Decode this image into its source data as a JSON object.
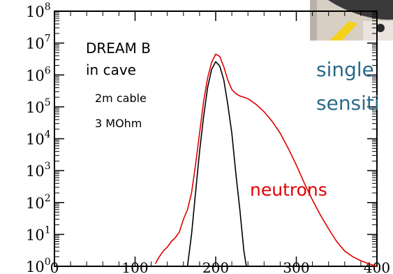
{
  "chart_data": {
    "type": "line",
    "title": "",
    "xlabel": "",
    "ylabel": "",
    "xlim": [
      0,
      400
    ],
    "ylim": [
      1,
      100000000
    ],
    "y_scale": "log",
    "grid": false,
    "x_ticks": [
      {
        "value": 0,
        "label": "0"
      },
      {
        "value": 100,
        "label": "100"
      },
      {
        "value": 200,
        "label": "200"
      },
      {
        "value": 300,
        "label": "300"
      },
      {
        "value": 400,
        "label": "400"
      }
    ],
    "y_ticks": [
      {
        "exp": 0,
        "base": "10",
        "sup": "0"
      },
      {
        "exp": 1,
        "base": "10",
        "sup": "1"
      },
      {
        "exp": 2,
        "base": "10",
        "sup": "2"
      },
      {
        "exp": 3,
        "base": "10",
        "sup": "3"
      },
      {
        "exp": 4,
        "base": "10",
        "sup": "4"
      },
      {
        "exp": 5,
        "base": "10",
        "sup": "5"
      },
      {
        "exp": 6,
        "base": "10",
        "sup": "6"
      },
      {
        "exp": 7,
        "base": "10",
        "sup": "7"
      },
      {
        "exp": 8,
        "base": "10",
        "sup": "8"
      }
    ],
    "series": [
      {
        "color": "#e00000",
        "x": [
          125,
          130,
          135,
          140,
          145,
          150,
          155,
          160,
          165,
          170,
          175,
          180,
          185,
          190,
          195,
          200,
          205,
          210,
          215,
          220,
          225,
          230,
          235,
          240,
          250,
          260,
          270,
          280,
          290,
          300,
          310,
          320,
          330,
          340,
          350,
          360,
          370,
          380,
          390,
          400
        ],
        "y": [
          1.2,
          2,
          3,
          4,
          6,
          8,
          12,
          30,
          60,
          200,
          1500,
          15000,
          150000,
          800000,
          2500000,
          4500000,
          3800000,
          1800000,
          700000,
          350000,
          260000,
          220000,
          200000,
          180000,
          120000,
          70000,
          35000,
          15000,
          5000,
          1500,
          400,
          120,
          40,
          15,
          6,
          3,
          2,
          1.5,
          1.2,
          1
        ]
      },
      {
        "color": "#000000",
        "x": [
          165,
          170,
          175,
          180,
          185,
          190,
          195,
          200,
          205,
          210,
          215,
          220,
          225,
          230,
          235,
          238
        ],
        "y": [
          1,
          10,
          200,
          4000,
          50000,
          400000,
          1500000,
          2600000,
          1900000,
          700000,
          120000,
          15000,
          800,
          60,
          3,
          1
        ]
      }
    ],
    "annotations": [
      {
        "text": "DREAM B",
        "color": "#000000"
      },
      {
        "text": "in cave",
        "color": "#000000"
      },
      {
        "text": "2m cable",
        "color": "#000000"
      },
      {
        "text": "3 MOhm",
        "color": "#000000"
      },
      {
        "text": "neutrons",
        "color": "#e00000"
      },
      {
        "text": "single",
        "color": "#2a6a8a"
      },
      {
        "text": "sensiti",
        "color": "#2a6a8a"
      }
    ]
  }
}
